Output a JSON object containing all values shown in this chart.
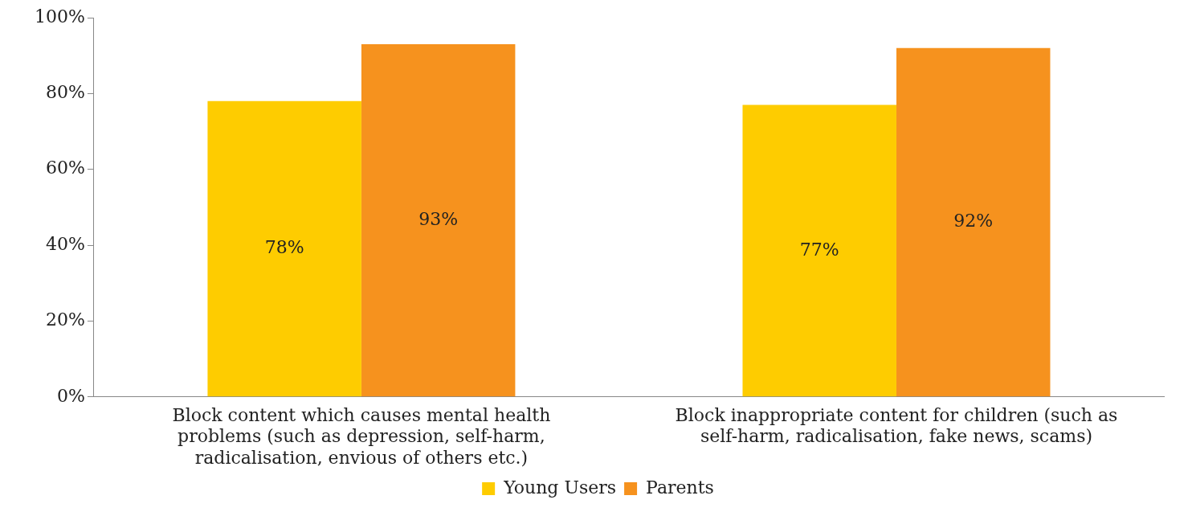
{
  "chart_data": {
    "type": "bar",
    "categories": [
      "Block content which causes mental health problems (such as depression, self-harm, radicalisation, envious of others etc.)",
      "Block inappropriate content for children (such as self-harm, radicalisation, fake news, scams)"
    ],
    "series": [
      {
        "name": "Young Users",
        "color": "#fecc00",
        "values": [
          78,
          77
        ],
        "value_labels": [
          "78%",
          "77%"
        ]
      },
      {
        "name": "Parents",
        "color": "#f6921e",
        "values": [
          93,
          92
        ],
        "value_labels": [
          "93%",
          "92%"
        ]
      }
    ],
    "ylim": [
      0,
      100
    ],
    "yticks": [
      {
        "value": 0,
        "label": "0%"
      },
      {
        "value": 20,
        "label": "20%"
      },
      {
        "value": 40,
        "label": "40%"
      },
      {
        "value": 60,
        "label": "60%"
      },
      {
        "value": 80,
        "label": "80%"
      },
      {
        "value": 100,
        "label": "100%"
      }
    ],
    "grid": false,
    "legend": "bottom"
  }
}
